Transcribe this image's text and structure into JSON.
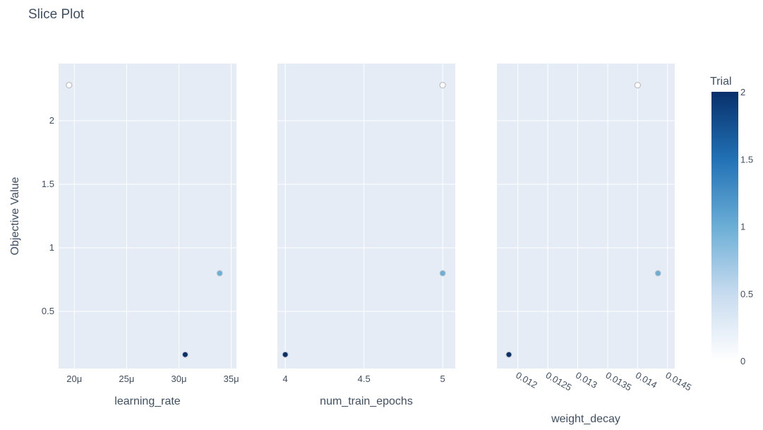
{
  "chart_data": {
    "type": "scatter",
    "title": "Slice Plot",
    "ylabel": "Objective Value",
    "y_ticks": [
      0.5,
      1,
      1.5,
      2
    ],
    "y_tick_labels": [
      "0.5",
      "1",
      "1.5",
      "2"
    ],
    "ylim": [
      0.05,
      2.45
    ],
    "colorbar": {
      "title": "Trial",
      "range": [
        0,
        2
      ],
      "ticks": [
        0,
        0.5,
        1,
        1.5,
        2
      ],
      "tick_labels": [
        "0",
        "0.5",
        "1",
        "1.5",
        "2"
      ],
      "colors": [
        "#ffffff",
        "#c7dbef",
        "#6baed6",
        "#2171b5",
        "#08306b"
      ]
    },
    "panels": [
      {
        "xlabel": "learning_rate",
        "xlim": [
          1.85e-05,
          3.55e-05
        ],
        "x_ticks": [
          2e-05,
          2.5e-05,
          3e-05,
          3.5e-05
        ],
        "x_tick_labels": [
          "20μ",
          "25μ",
          "30μ",
          "35μ"
        ],
        "tick_rotation": 0,
        "points": [
          {
            "x": 1.95e-05,
            "y": 2.28,
            "trial": 0
          },
          {
            "x": 3.39e-05,
            "y": 0.8,
            "trial": 1
          },
          {
            "x": 3.06e-05,
            "y": 0.16,
            "trial": 2
          }
        ]
      },
      {
        "xlabel": "num_train_epochs",
        "xlim": [
          3.95,
          5.08
        ],
        "x_ticks": [
          4,
          4.5,
          5
        ],
        "x_tick_labels": [
          "4",
          "4.5",
          "5"
        ],
        "tick_rotation": 0,
        "points": [
          {
            "x": 5,
            "y": 2.28,
            "trial": 0
          },
          {
            "x": 5,
            "y": 0.8,
            "trial": 1
          },
          {
            "x": 4,
            "y": 0.16,
            "trial": 2
          }
        ]
      },
      {
        "xlabel": "weight_decay",
        "xlim": [
          0.01165,
          0.01462
        ],
        "x_ticks": [
          0.012,
          0.0125,
          0.013,
          0.0135,
          0.014,
          0.0145
        ],
        "x_tick_labels": [
          "0.012",
          "0.0125",
          "0.013",
          "0.0135",
          "0.014",
          "0.0145"
        ],
        "tick_rotation": 30,
        "points": [
          {
            "x": 0.014,
            "y": 2.28,
            "trial": 0
          },
          {
            "x": 0.01434,
            "y": 0.8,
            "trial": 1
          },
          {
            "x": 0.01185,
            "y": 0.16,
            "trial": 2
          }
        ]
      }
    ]
  }
}
